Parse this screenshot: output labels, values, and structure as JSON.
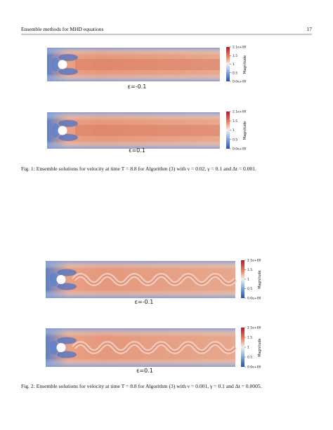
{
  "header": {
    "title": "Ensemble methods for MHD equations",
    "page": "17"
  },
  "figures": [
    {
      "panels": [
        {
          "label": "ε=-0.1",
          "colorbar": {
            "ticks": [
              "2.1e+00",
              "1.5",
              "1",
              "0.5",
              "0.0e+00"
            ],
            "title": "Magnitude"
          }
        },
        {
          "label": "ε=0.1",
          "colorbar": {
            "ticks": [
              "2.1e+00",
              "1.5",
              "1",
              "0.5",
              "0.0e+00"
            ],
            "title": "Magnitude"
          }
        }
      ],
      "caption": "Fig. 1: Ensemble solutions for velocity at time T = 8.8 for Algorithm (3) with ν = 0.02, γ = 0.1 and Δt = 0.001."
    },
    {
      "panels": [
        {
          "label": "ε=-0.1",
          "colorbar": {
            "ticks": [
              "2.1e+00",
              "1.5",
              "1",
              "0.5",
              "0.0e+00"
            ],
            "title": "Magnitude"
          }
        },
        {
          "label": "ε=0.1",
          "colorbar": {
            "ticks": [
              "2.1e+00",
              "1.5",
              "1",
              "0.5",
              "0.0e+00"
            ],
            "title": "Magnitude"
          }
        }
      ],
      "caption": "Fig. 2: Ensemble solutions for velocity at time T = 8.8 for Algorithm (3) with ν = 0.001, γ = 0.1 and Δt = 0.0005."
    }
  ]
}
